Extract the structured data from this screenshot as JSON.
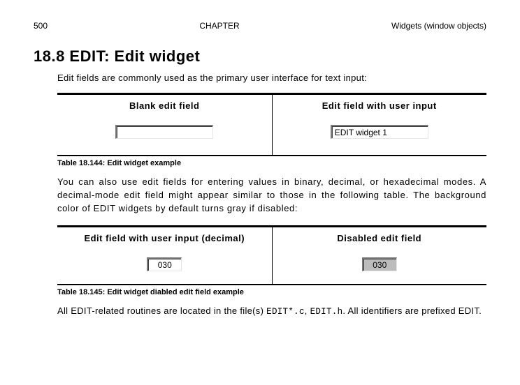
{
  "header": {
    "page_number": "500",
    "chapter_label": "CHAPTER",
    "section_label": "Widgets (window objects)"
  },
  "title": "18.8   EDIT: Edit widget",
  "intro": "Edit fields are commonly used as the primary user interface for text input:",
  "table1": {
    "col1_title": "Blank edit field",
    "col2_title": "Edit field with user input",
    "col1_value": "",
    "col2_value": "EDIT widget 1",
    "caption": "Table 18.144: Edit widget example"
  },
  "paragraph2": "You can also use edit fields for entering values in binary, decimal, or hexadecimal modes. A decimal-mode edit field might appear similar to those in the following table. The background color of EDIT widgets by default turns gray if disabled:",
  "table2": {
    "col1_title": "Edit field with user input (decimal)",
    "col2_title": "Disabled edit field",
    "col1_value": "030",
    "col2_value": "030",
    "caption": "Table 18.145: Edit widget diabled edit field example"
  },
  "files": {
    "prefix": "All EDIT-related routines are located in the file(s) ",
    "file1": "EDIT*.c",
    "sep": ", ",
    "file2": "EDIT.h",
    "suffix": ". All identifiers are prefixed EDIT."
  }
}
